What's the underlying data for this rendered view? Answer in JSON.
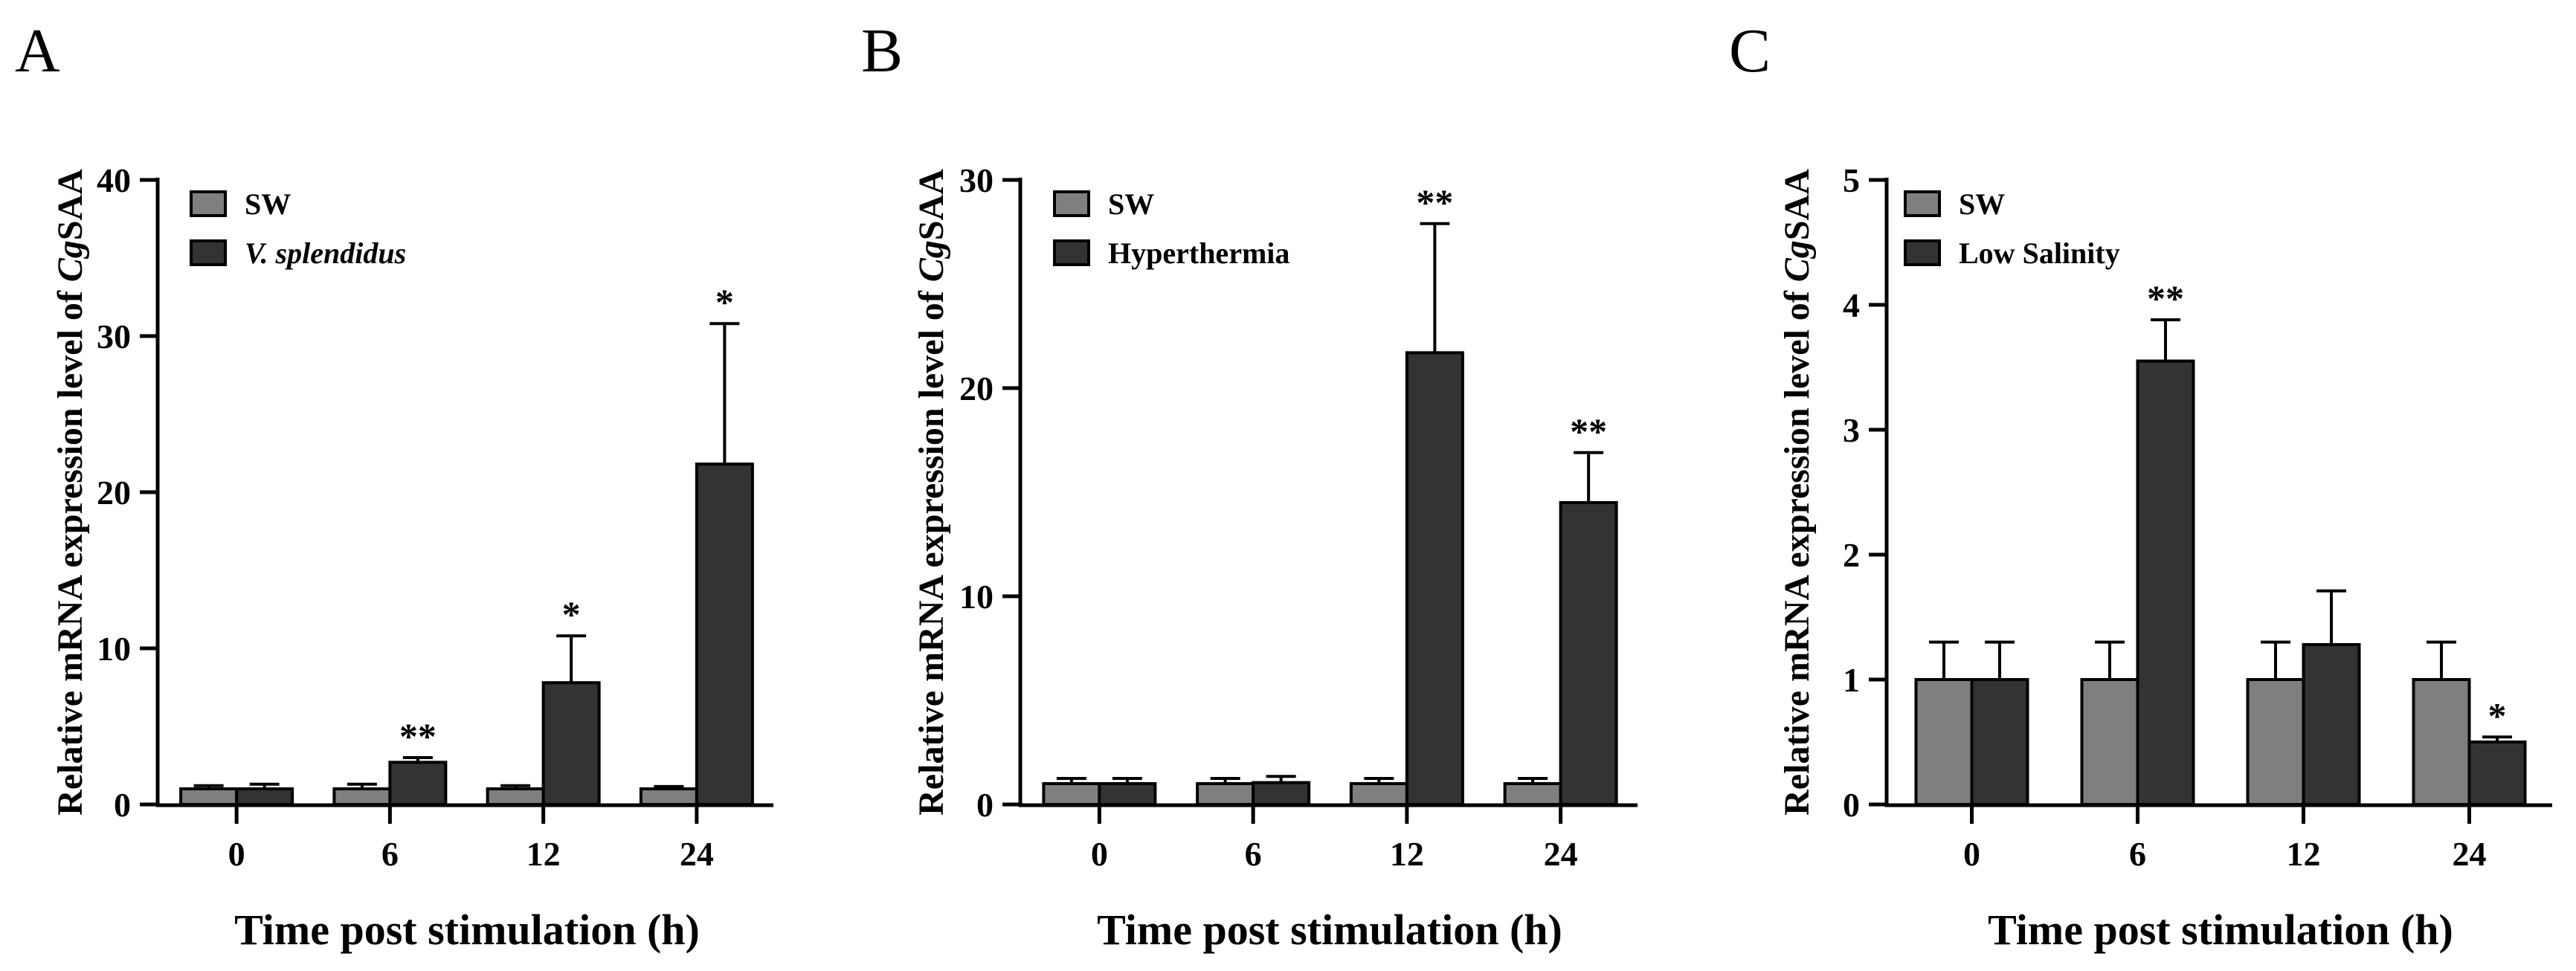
{
  "figure": {
    "colors": {
      "sw": "#7f7f7f",
      "treat": "#333333",
      "axis": "#000000"
    }
  },
  "chart_data": [
    {
      "type": "bar",
      "panel": "A",
      "categories": [
        "0",
        "6",
        "12",
        "24"
      ],
      "xlabel": "Time post stimulation (h)",
      "ylabel_prefix": "Relative mRNA expression level of ",
      "ylabel_italic": "Cg",
      "ylabel_suffix": "SAA",
      "ylim": [
        0,
        40
      ],
      "yticks": [
        0,
        10,
        20,
        30,
        40
      ],
      "legend_position": "top-left",
      "series": [
        {
          "name": "SW",
          "italic": false,
          "color": "#7f7f7f",
          "values": [
            1.0,
            1.0,
            1.0,
            1.0
          ],
          "errors": [
            0.2,
            0.3,
            0.2,
            0.15
          ],
          "sig": [
            "",
            "",
            "",
            ""
          ]
        },
        {
          "name": "V. splendidus",
          "italic": true,
          "color": "#333333",
          "values": [
            1.0,
            2.7,
            7.8,
            21.8
          ],
          "errors": [
            0.3,
            0.3,
            3.0,
            9.0
          ],
          "sig": [
            "",
            "**",
            "*",
            "*"
          ]
        }
      ]
    },
    {
      "type": "bar",
      "panel": "B",
      "categories": [
        "0",
        "6",
        "12",
        "24"
      ],
      "xlabel": "Time post stimulation (h)",
      "ylabel_prefix": "Relative mRNA expression level of ",
      "ylabel_italic": "Cg",
      "ylabel_suffix": "SAA",
      "ylim": [
        0,
        30
      ],
      "yticks": [
        0,
        10,
        20,
        30
      ],
      "legend_position": "top-left",
      "series": [
        {
          "name": "SW",
          "italic": false,
          "color": "#7f7f7f",
          "values": [
            1.0,
            1.0,
            1.0,
            1.0
          ],
          "errors": [
            0.25,
            0.25,
            0.25,
            0.25
          ],
          "sig": [
            "",
            "",
            "",
            ""
          ]
        },
        {
          "name": "Hyperthermia",
          "italic": false,
          "color": "#333333",
          "values": [
            1.0,
            1.05,
            21.7,
            14.5
          ],
          "errors": [
            0.25,
            0.3,
            6.2,
            2.4
          ],
          "sig": [
            "",
            "",
            "**",
            "**"
          ]
        }
      ]
    },
    {
      "type": "bar",
      "panel": "C",
      "categories": [
        "0",
        "6",
        "12",
        "24"
      ],
      "xlabel": "Time post stimulation (h)",
      "ylabel_prefix": "Relative mRNA expression level of ",
      "ylabel_italic": "Cg",
      "ylabel_suffix": "SAA",
      "ylim": [
        0,
        5
      ],
      "yticks": [
        0,
        1,
        2,
        3,
        4,
        5
      ],
      "legend_position": "top-left",
      "series": [
        {
          "name": "SW",
          "italic": false,
          "color": "#7f7f7f",
          "values": [
            1.0,
            1.0,
            1.0,
            1.0
          ],
          "errors": [
            0.3,
            0.3,
            0.3,
            0.3
          ],
          "sig": [
            "",
            "",
            "",
            ""
          ]
        },
        {
          "name": "Low Salinity",
          "italic": false,
          "color": "#333333",
          "values": [
            1.0,
            3.55,
            1.28,
            0.5
          ],
          "errors": [
            0.3,
            0.33,
            0.43,
            0.04
          ],
          "sig": [
            "",
            "**",
            "",
            "*"
          ]
        }
      ]
    }
  ]
}
